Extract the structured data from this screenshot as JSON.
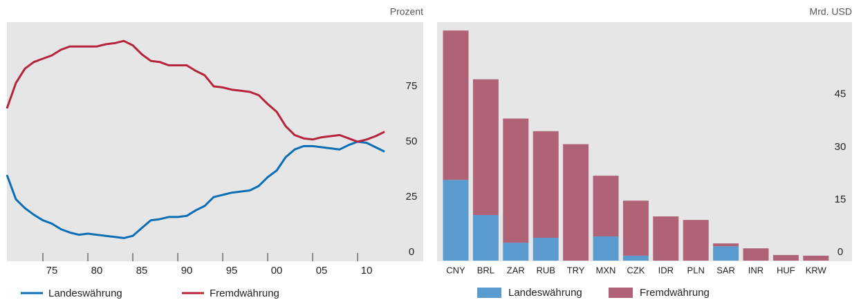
{
  "chart_data": [
    {
      "type": "line",
      "unit": "Prozent",
      "x": [
        1970,
        1971,
        1972,
        1973,
        1974,
        1975,
        1976,
        1977,
        1978,
        1979,
        1980,
        1981,
        1982,
        1983,
        1984,
        1985,
        1986,
        1987,
        1988,
        1989,
        1990,
        1991,
        1992,
        1993,
        1994,
        1995,
        1996,
        1997,
        1998,
        1999,
        2000,
        2001,
        2002,
        2003,
        2004,
        2005,
        2006,
        2007,
        2008,
        2009,
        2010,
        2011,
        2012
      ],
      "series": [
        {
          "name": "Landeswährung",
          "color": "#0a6db5",
          "values": [
            35,
            24,
            20,
            17,
            14.5,
            13,
            10.5,
            9,
            8,
            8.5,
            8,
            7.5,
            7,
            6.5,
            7.5,
            11,
            14.5,
            15,
            16,
            16,
            16.5,
            19,
            21,
            25,
            26,
            27,
            27.5,
            28,
            30,
            34,
            37,
            43,
            46.5,
            48,
            48,
            47.5,
            47,
            46.5,
            48.5,
            50,
            49.5,
            47.5,
            45.5
          ]
        },
        {
          "name": "Fremdwährung",
          "color": "#b5243a",
          "values": [
            65,
            76.5,
            83,
            86,
            87.5,
            89,
            91.5,
            93,
            93,
            93,
            93,
            94,
            94.5,
            95.5,
            93.5,
            89.5,
            86.5,
            86,
            84.5,
            84.5,
            84.5,
            82,
            80,
            75,
            74.5,
            73.5,
            73,
            72.5,
            71,
            67,
            63.5,
            57,
            53,
            51.5,
            51,
            52,
            52.5,
            53,
            51.5,
            50,
            51,
            52.5,
            54.5
          ]
        }
      ],
      "xlim": [
        1970,
        2016.3
      ],
      "xticks": [
        {
          "value": 1975,
          "label": "75"
        },
        {
          "value": 1980,
          "label": "80"
        },
        {
          "value": 1985,
          "label": "85"
        },
        {
          "value": 1990,
          "label": "90"
        },
        {
          "value": 1995,
          "label": "95"
        },
        {
          "value": 2000,
          "label": "00"
        },
        {
          "value": 2005,
          "label": "05"
        },
        {
          "value": 2010,
          "label": "10"
        }
      ],
      "ylim": [
        -4,
        104
      ],
      "yticks": [
        0,
        25,
        50,
        75
      ]
    },
    {
      "type": "bar",
      "unit": "Mrd. USD",
      "stacked": true,
      "categories": [
        "CNY",
        "BRL",
        "ZAR",
        "RUB",
        "TRY",
        "MXN",
        "CZK",
        "IDR",
        "PLN",
        "SAR",
        "INR",
        "HUF",
        "KRW"
      ],
      "series": [
        {
          "name": "Landeswährung",
          "color": "#5a9bd0",
          "values": [
            23,
            13,
            5.1,
            6.5,
            0,
            6.9,
            1.4,
            0,
            0,
            4.1,
            0,
            0,
            0
          ]
        },
        {
          "name": "Fremdwährung",
          "color": "#b06277",
          "values": [
            42.6,
            38.7,
            35.4,
            30.4,
            33.2,
            17.3,
            15.7,
            12.6,
            11.6,
            0.8,
            3.5,
            1.6,
            1.4
          ]
        }
      ],
      "ylim": [
        0,
        68
      ],
      "yticks": [
        0,
        15,
        30,
        45
      ]
    }
  ]
}
